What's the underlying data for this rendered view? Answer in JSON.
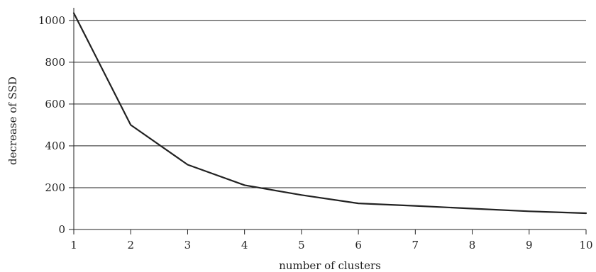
{
  "chart_data": {
    "type": "line",
    "title": "",
    "xlabel": "number of clusters",
    "ylabel": "decrease of SSD",
    "x": [
      1,
      2,
      3,
      4,
      5,
      6,
      7,
      8,
      9,
      10
    ],
    "series": [
      {
        "values": [
          1035,
          500,
          310,
          212,
          165,
          125,
          113,
          100,
          87,
          78
        ]
      }
    ],
    "xlim": [
      1,
      10
    ],
    "ylim": [
      0,
      1000
    ],
    "xticks": [
      "1",
      "2",
      "3",
      "4",
      "5",
      "6",
      "7",
      "8",
      "9",
      "10"
    ],
    "yticks": [
      "0",
      "200",
      "400",
      "600",
      "800",
      "1000"
    ],
    "grid": "horizontal",
    "legend": "none",
    "colors": {
      "line": "#222222",
      "grid": "#222222",
      "axis": "#222222"
    }
  }
}
